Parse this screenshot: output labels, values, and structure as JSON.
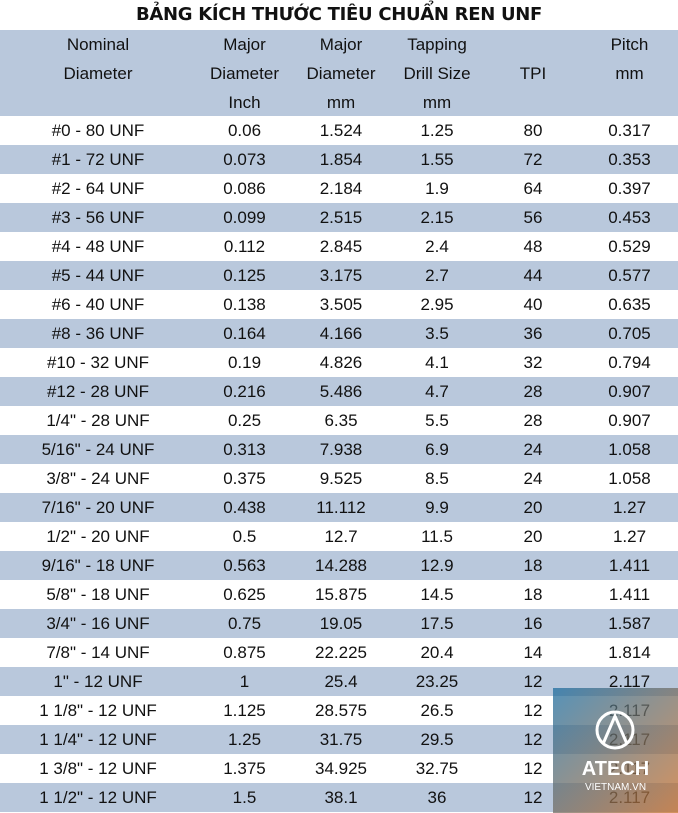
{
  "title": "BẢNG KÍCH THƯỚC TIÊU CHUẨN REN UNF",
  "table": {
    "header": [
      [
        "Nominal",
        "Diameter"
      ],
      [
        "Major",
        "Diameter",
        "Inch"
      ],
      [
        "Major",
        "Diameter",
        "mm"
      ],
      [
        "Tapping",
        "Drill Size",
        "mm"
      ],
      [
        "TPI"
      ],
      [
        "Pitch",
        "mm"
      ]
    ],
    "rows": [
      [
        "#0 - 80 UNF",
        "0.06",
        "1.524",
        "1.25",
        "80",
        "0.317"
      ],
      [
        "#1 - 72 UNF",
        "0.073",
        "1.854",
        "1.55",
        "72",
        "0.353"
      ],
      [
        "#2 - 64 UNF",
        "0.086",
        "2.184",
        "1.9",
        "64",
        "0.397"
      ],
      [
        "#3 - 56 UNF",
        "0.099",
        "2.515",
        "2.15",
        "56",
        "0.453"
      ],
      [
        "#4 - 48 UNF",
        "0.112",
        "2.845",
        "2.4",
        "48",
        "0.529"
      ],
      [
        "#5 - 44 UNF",
        "0.125",
        "3.175",
        "2.7",
        "44",
        "0.577"
      ],
      [
        "#6 - 40 UNF",
        "0.138",
        "3.505",
        "2.95",
        "40",
        "0.635"
      ],
      [
        "#8 - 36 UNF",
        "0.164",
        "4.166",
        "3.5",
        "36",
        "0.705"
      ],
      [
        "#10 - 32 UNF",
        "0.19",
        "4.826",
        "4.1",
        "32",
        "0.794"
      ],
      [
        "#12 - 28 UNF",
        "0.216",
        "5.486",
        "4.7",
        "28",
        "0.907"
      ],
      [
        "1/4\" - 28 UNF",
        "0.25",
        "6.35",
        "5.5",
        "28",
        "0.907"
      ],
      [
        "5/16\" - 24 UNF",
        "0.313",
        "7.938",
        "6.9",
        "24",
        "1.058"
      ],
      [
        "3/8\" - 24 UNF",
        "0.375",
        "9.525",
        "8.5",
        "24",
        "1.058"
      ],
      [
        "7/16\" - 20 UNF",
        "0.438",
        "11.112",
        "9.9",
        "20",
        "1.27"
      ],
      [
        "1/2\" - 20 UNF",
        "0.5",
        "12.7",
        "11.5",
        "20",
        "1.27"
      ],
      [
        "9/16\" - 18 UNF",
        "0.563",
        "14.288",
        "12.9",
        "18",
        "1.411"
      ],
      [
        "5/8\" - 18 UNF",
        "0.625",
        "15.875",
        "14.5",
        "18",
        "1.411"
      ],
      [
        "3/4\" - 16 UNF",
        "0.75",
        "19.05",
        "17.5",
        "16",
        "1.587"
      ],
      [
        "7/8\" - 14 UNF",
        "0.875",
        "22.225",
        "20.4",
        "14",
        "1.814"
      ],
      [
        "1\" - 12 UNF",
        "1",
        "25.4",
        "23.25",
        "12",
        "2.117"
      ],
      [
        "1 1/8\" - 12 UNF",
        "1.125",
        "28.575",
        "26.5",
        "12",
        "2.117"
      ],
      [
        "1 1/4\" - 12 UNF",
        "1.25",
        "31.75",
        "29.5",
        "12",
        "2.117"
      ],
      [
        "1 3/8\" - 12 UNF",
        "1.375",
        "34.925",
        "32.75",
        "12",
        "2.117"
      ],
      [
        "1 1/2\" - 12 UNF",
        "1.5",
        "38.1",
        "36",
        "12",
        "2.117"
      ]
    ]
  },
  "watermark": {
    "brand": "ATECH",
    "site": "VIETNAM.VN"
  }
}
